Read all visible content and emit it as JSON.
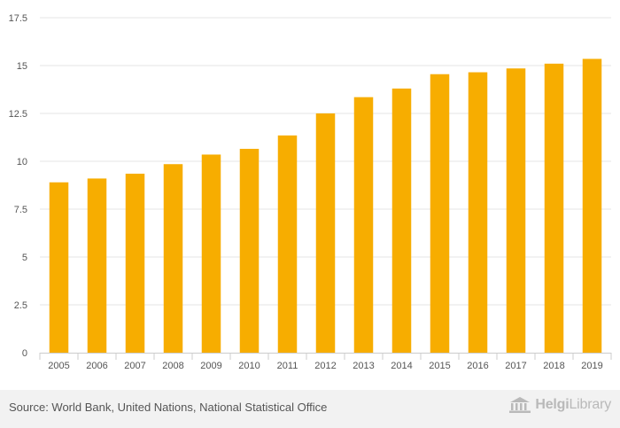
{
  "chart_data": {
    "type": "bar",
    "title": "",
    "xlabel": "",
    "ylabel": "",
    "categories": [
      "2005",
      "2006",
      "2007",
      "2008",
      "2009",
      "2010",
      "2011",
      "2012",
      "2013",
      "2014",
      "2015",
      "2016",
      "2017",
      "2018",
      "2019"
    ],
    "values": [
      8.9,
      9.1,
      9.35,
      9.85,
      10.35,
      10.65,
      11.35,
      12.5,
      13.35,
      13.8,
      14.55,
      14.65,
      14.85,
      15.1,
      15.35
    ],
    "ylim": [
      0,
      17.5
    ],
    "yticks": [
      0,
      2.5,
      5,
      7.5,
      10,
      12.5,
      15,
      17.5
    ],
    "ytick_labels": [
      "0",
      "2.5",
      "5",
      "7.5",
      "10",
      "12.5",
      "15",
      "17.5"
    ],
    "grid": true,
    "bar_color": "#f7ad00",
    "grid_color": "#e6e6e6",
    "axis_color": "#cccccc"
  },
  "footer": {
    "source": "Source: World Bank, United Nations, National Statistical Office",
    "logo_bold": "Helgi",
    "logo_rest": "Library"
  }
}
